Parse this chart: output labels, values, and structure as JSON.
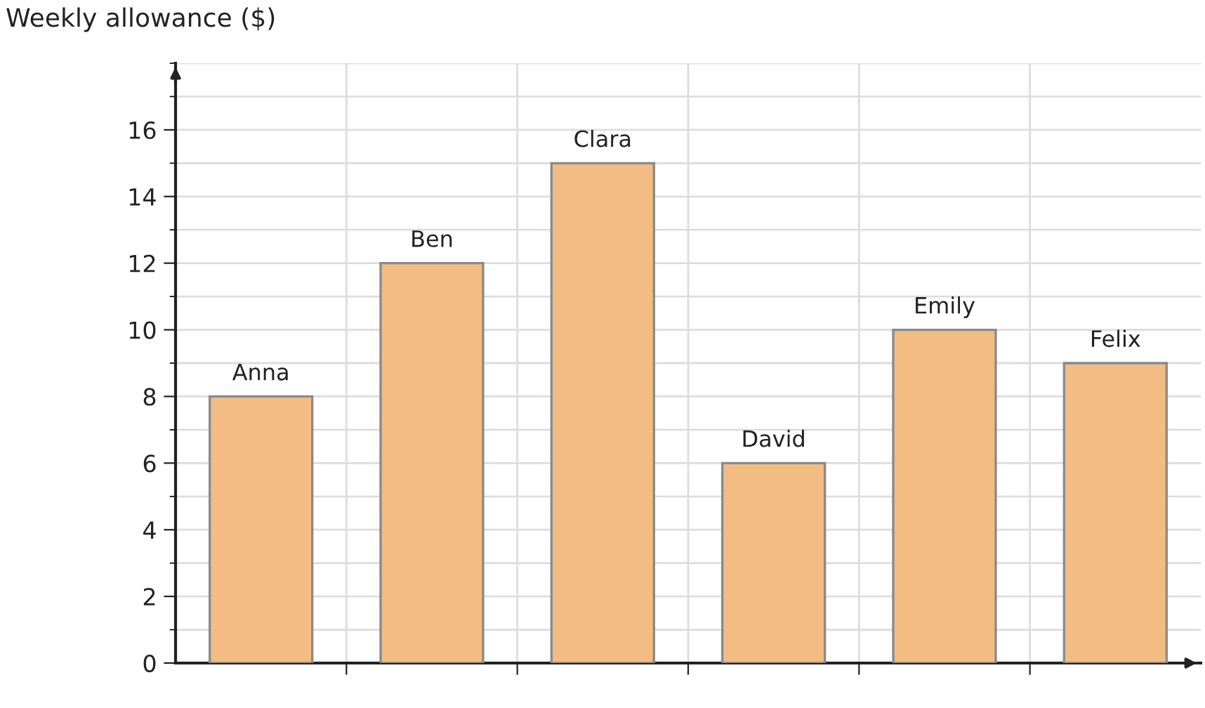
{
  "chart_data": {
    "type": "bar",
    "ylabel": "Weekly allowance ($)",
    "categories": [
      "Anna",
      "Ben",
      "Clara",
      "David",
      "Emily",
      "Felix"
    ],
    "values": [
      8,
      12,
      15,
      6,
      10,
      9
    ],
    "color": "#f2bc82",
    "ylim": [
      0,
      18
    ],
    "yticks": [
      0,
      2,
      4,
      6,
      8,
      10,
      12,
      14,
      16
    ],
    "grid": true
  }
}
